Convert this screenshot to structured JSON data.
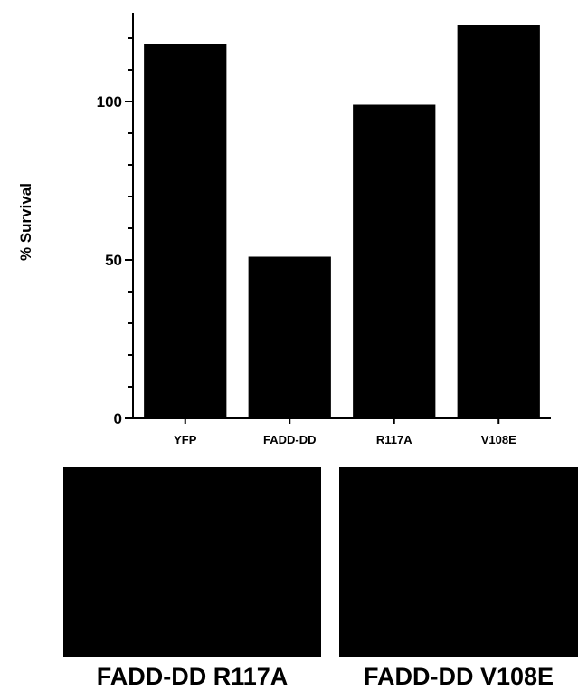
{
  "chart_data": {
    "type": "bar",
    "categories": [
      "YFP",
      "FADD-DD",
      "R117A",
      "V108E"
    ],
    "values": [
      118,
      51,
      99,
      124
    ],
    "ylabel": "% Survival",
    "ylim": [
      0,
      128
    ],
    "yticks": [
      0,
      50,
      100
    ],
    "grid": false,
    "bar_color": "#000000"
  },
  "panels": [
    {
      "label": "FADD-DD R117A",
      "color": "#000000"
    },
    {
      "label": "FADD-DD V108E",
      "color": "#000000"
    }
  ]
}
